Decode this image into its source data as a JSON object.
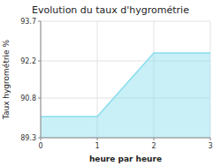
{
  "chart_data": {
    "type": "area",
    "title": "Evolution du taux d'hygrométrie",
    "xlabel": "heure par heure",
    "ylabel": "Taux hygrométrie %",
    "x": [
      0,
      1,
      2,
      3
    ],
    "values": [
      90.1,
      90.1,
      92.5,
      92.5
    ],
    "xlim": [
      0,
      3
    ],
    "ylim": [
      89.3,
      93.7
    ],
    "xticks": [
      0,
      1,
      2,
      3
    ],
    "yticks": [
      89.3,
      90.8,
      92.2,
      93.7
    ],
    "color": "#88ddee",
    "grid": true
  }
}
